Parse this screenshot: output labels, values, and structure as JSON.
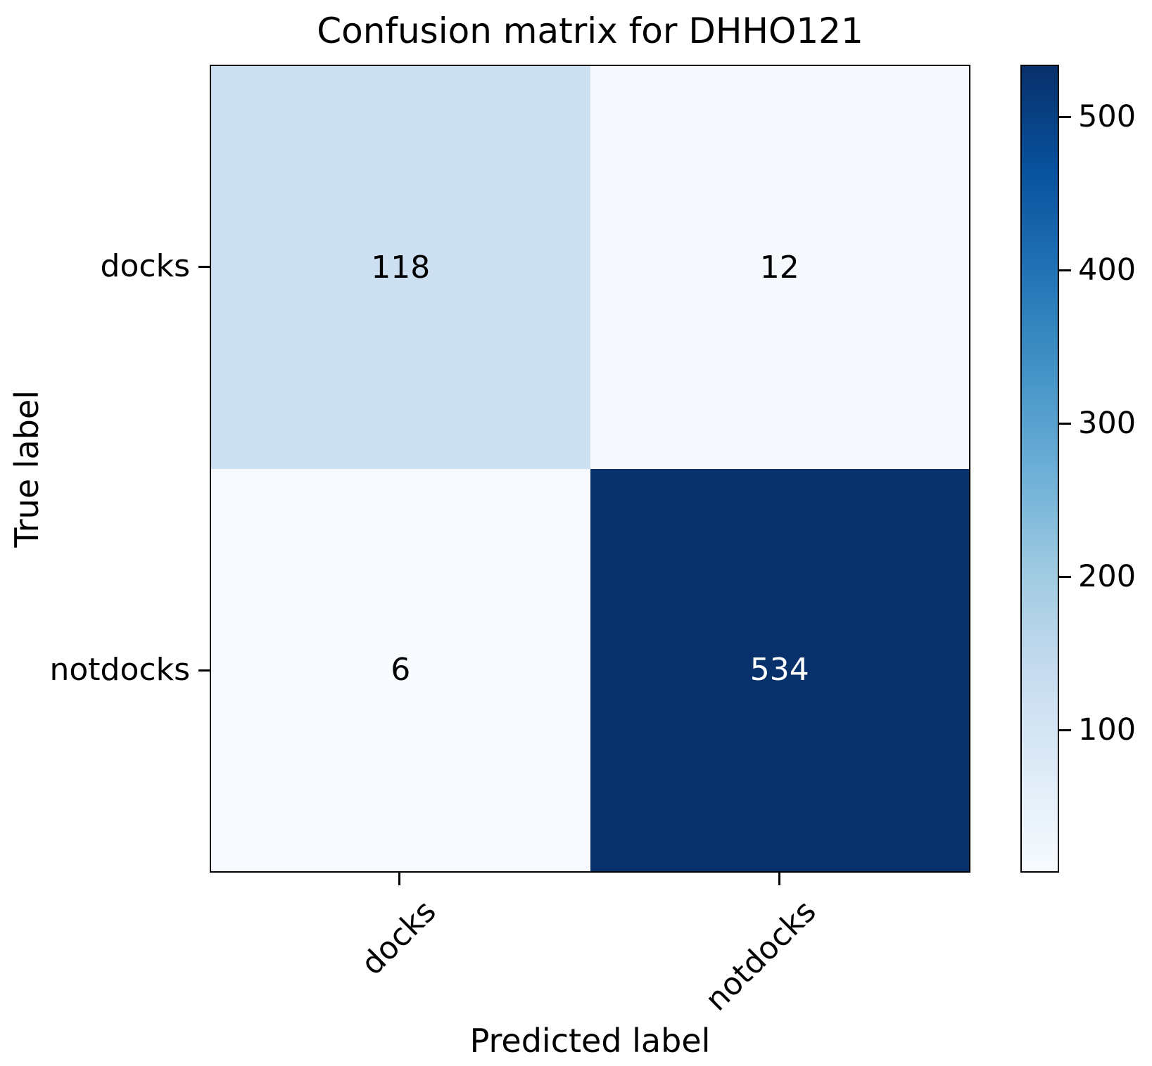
{
  "title": "Confusion matrix for DHHO121",
  "axes": {
    "x_label": "Predicted label",
    "y_label": "True label",
    "x_tick_labels": [
      "docks",
      "notdocks"
    ],
    "y_tick_labels": [
      "docks",
      "notdocks"
    ]
  },
  "cells": [
    {
      "true": "docks",
      "predicted": "docks",
      "value": "118",
      "bg": "#cde0f1",
      "fg": "#000000"
    },
    {
      "true": "docks",
      "predicted": "notdocks",
      "value": "12",
      "bg": "#f5f9fd",
      "fg": "#000000"
    },
    {
      "true": "notdocks",
      "predicted": "docks",
      "value": "6",
      "bg": "#f7fbff",
      "fg": "#000000"
    },
    {
      "true": "notdocks",
      "predicted": "notdocks",
      "value": "534",
      "bg": "#08306b",
      "fg": "#ffffff"
    }
  ],
  "colorbar": {
    "colormap": "Blues",
    "min_color": "#f7fbff",
    "max_color": "#08306b",
    "tick_labels_top_to_bottom": [
      "500",
      "400",
      "300",
      "200",
      "100"
    ]
  },
  "chart_data": {
    "type": "heatmap",
    "title": "Confusion matrix for DHHO121",
    "xlabel": "Predicted label",
    "ylabel": "True label",
    "categories": [
      "docks",
      "notdocks"
    ],
    "matrix": [
      [
        118,
        12
      ],
      [
        6,
        534
      ]
    ],
    "vmin": 6,
    "vmax": 534,
    "colormap": "Blues",
    "colorbar_ticks": [
      100,
      200,
      300,
      400,
      500
    ],
    "legend_position": "right-colorbar",
    "grid": false,
    "x_tick_rotation_deg": 45
  }
}
